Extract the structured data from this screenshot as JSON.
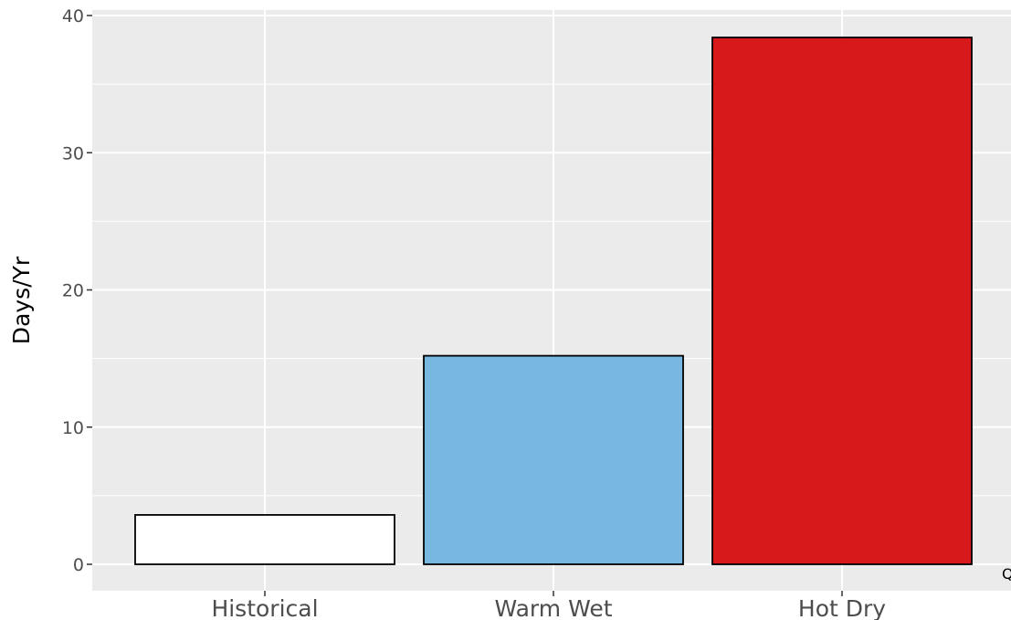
{
  "chart_data": {
    "type": "bar",
    "categories": [
      "Historical",
      "Warm Wet",
      "Hot Dry"
    ],
    "values": [
      3.6,
      15.2,
      38.4
    ],
    "title": "",
    "xlabel": "",
    "ylabel": "Days/Yr",
    "ylim": [
      0,
      40
    ],
    "yticks": [
      0,
      10,
      20,
      30,
      40
    ],
    "ytick_labels": [
      "0",
      "10",
      "20",
      "30",
      "40"
    ],
    "bar_colors": [
      "#ffffff",
      "#77b7e0",
      "#d7191c"
    ],
    "bar_outline_color": "#000000",
    "panel_background": "#ebebeb",
    "grid_color": "#ffffff",
    "grid": true,
    "legend": "none"
  },
  "corner_note": "Q"
}
